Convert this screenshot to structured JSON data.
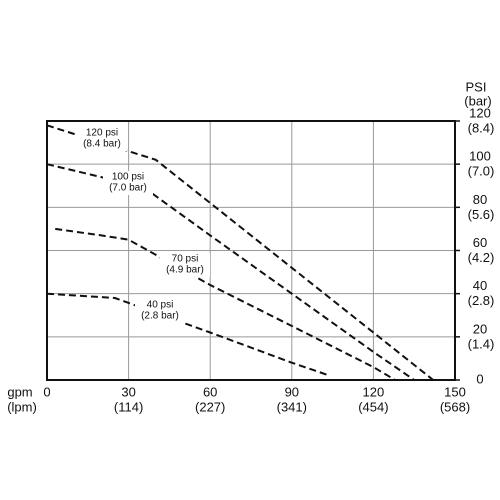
{
  "chart_data": {
    "type": "line",
    "x_label": "gpm",
    "x_label_sub": "(lpm)",
    "y_label": "PSI",
    "y_label_sub": "(bar)",
    "xlim": [
      0,
      150
    ],
    "ylim": [
      0,
      120
    ],
    "xticks": [
      0,
      30,
      60,
      90,
      120,
      150
    ],
    "x_sub_ticks": [
      {
        "value": 30,
        "label": "(114)"
      },
      {
        "value": 60,
        "label": "(227)"
      },
      {
        "value": 90,
        "label": "(341)"
      },
      {
        "value": 120,
        "label": "(454)"
      },
      {
        "value": 150,
        "label": "(568)"
      }
    ],
    "yticks": [
      0,
      20,
      40,
      60,
      80,
      100,
      120
    ],
    "y_sub_ticks": [
      {
        "value": 20,
        "label": "(1.4)"
      },
      {
        "value": 40,
        "label": "(2.8)"
      },
      {
        "value": 60,
        "label": "(4.2)"
      },
      {
        "value": 80,
        "label": "(5.6)"
      },
      {
        "value": 100,
        "label": "(7.0)"
      },
      {
        "value": 120,
        "label": "(8.4)"
      }
    ],
    "grid": true,
    "series": [
      {
        "name": "120 psi",
        "sub": "(8.4 bar)",
        "color": "#111111",
        "x": [
          0,
          10,
          20,
          30,
          40,
          60,
          90,
          120,
          142
        ],
        "values": [
          118,
          114,
          110,
          106,
          102,
          82,
          52,
          22,
          0
        ]
      },
      {
        "name": "100 psi",
        "sub": "(7.0 bar)",
        "color": "#111111",
        "x": [
          0,
          20,
          38,
          60,
          90,
          120,
          135
        ],
        "values": [
          100,
          94,
          87,
          67,
          40,
          13,
          0
        ]
      },
      {
        "name": "70 psi",
        "sub": "(4.9 bar)",
        "color": "#111111",
        "x": [
          3,
          20,
          30,
          60,
          90,
          120,
          128
        ],
        "values": [
          70,
          67,
          65,
          44,
          25,
          6,
          0
        ]
      },
      {
        "name": "40 psi",
        "sub": "(2.8 bar)",
        "color": "#111111",
        "x": [
          0,
          25,
          60,
          90,
          104
        ],
        "values": [
          40,
          38,
          22,
          8,
          2
        ]
      }
    ]
  }
}
